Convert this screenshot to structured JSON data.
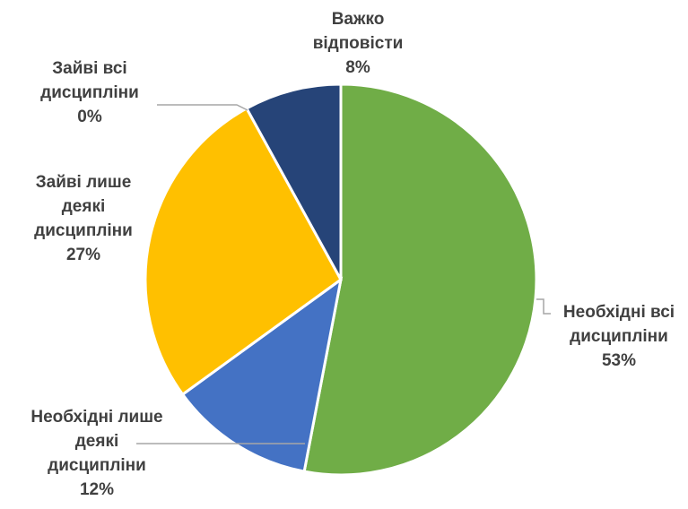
{
  "chart_data": {
    "type": "pie",
    "title": "",
    "slices": [
      {
        "label": [
          "Необхідні всі",
          "дисципліни"
        ],
        "value_label": "53%",
        "value": 53,
        "color": "#70AD47"
      },
      {
        "label": [
          "Необхідні лише",
          "деякі",
          "дисципліни"
        ],
        "value_label": "12%",
        "value": 12,
        "color": "#4472C4"
      },
      {
        "label": [
          "Зайві лише",
          "деякі",
          "дисципліни"
        ],
        "value_label": "27%",
        "value": 27,
        "color": "#FFC000"
      },
      {
        "label": [
          "Зайві всі",
          "дисципліни"
        ],
        "value_label": "0%",
        "value": 0,
        "color": "#A5A5A5"
      },
      {
        "label": [
          "Важко",
          "відповісти"
        ],
        "value_label": "8%",
        "value": 8,
        "color": "#264478"
      }
    ],
    "start_angle_deg": 0,
    "direction": "clockwise",
    "legend": "none",
    "data_labels": "outside"
  }
}
